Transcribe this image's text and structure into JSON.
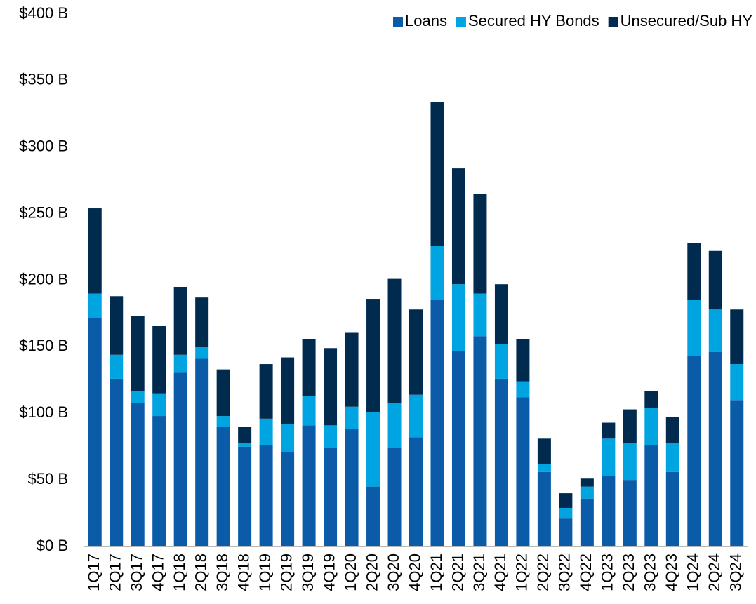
{
  "chart_data": {
    "type": "stacked_bar",
    "categories": [
      "1Q17",
      "2Q17",
      "3Q17",
      "4Q17",
      "1Q18",
      "2Q18",
      "3Q18",
      "4Q18",
      "1Q19",
      "2Q19",
      "3Q19",
      "4Q19",
      "1Q20",
      "2Q20",
      "3Q20",
      "4Q20",
      "1Q21",
      "2Q21",
      "3Q21",
      "4Q21",
      "1Q22",
      "2Q22",
      "3Q22",
      "4Q22",
      "1Q23",
      "2Q23",
      "3Q23",
      "4Q23",
      "1Q24",
      "2Q24",
      "3Q24"
    ],
    "series": [
      {
        "name": "Loans",
        "color": "#0a5ca8",
        "values": [
          172,
          126,
          108,
          98,
          131,
          141,
          90,
          75,
          76,
          71,
          91,
          74,
          88,
          45,
          74,
          82,
          185,
          147,
          158,
          126,
          112,
          56,
          21,
          36,
          53,
          50,
          76,
          56,
          143,
          146,
          110
        ]
      },
      {
        "name": "Secured HY Bonds",
        "color": "#00a4e0",
        "values": [
          18,
          18,
          9,
          17,
          13,
          9,
          8,
          3,
          20,
          21,
          22,
          17,
          17,
          56,
          34,
          32,
          41,
          50,
          32,
          26,
          12,
          6,
          8,
          9,
          28,
          28,
          28,
          22,
          42,
          32,
          27
        ]
      },
      {
        "name": "Unsecured/Sub HY",
        "color": "#002a4e",
        "values": [
          64,
          44,
          56,
          51,
          51,
          37,
          35,
          12,
          41,
          50,
          43,
          58,
          56,
          85,
          93,
          64,
          108,
          87,
          75,
          45,
          32,
          19,
          11,
          6,
          12,
          25,
          13,
          19,
          43,
          44,
          41
        ]
      }
    ],
    "ylim": [
      0,
      400
    ],
    "yticks": [
      {
        "value": 0,
        "label": "$0 B"
      },
      {
        "value": 50,
        "label": "$50 B"
      },
      {
        "value": 100,
        "label": "$100 B"
      },
      {
        "value": 150,
        "label": "$150 B"
      },
      {
        "value": 200,
        "label": "$200 B"
      },
      {
        "value": 250,
        "label": "$250 B"
      },
      {
        "value": 300,
        "label": "$300 B"
      },
      {
        "value": 350,
        "label": "$350 B"
      },
      {
        "value": 400,
        "label": "$400 B"
      }
    ],
    "grid": false,
    "legend": "top-right"
  }
}
